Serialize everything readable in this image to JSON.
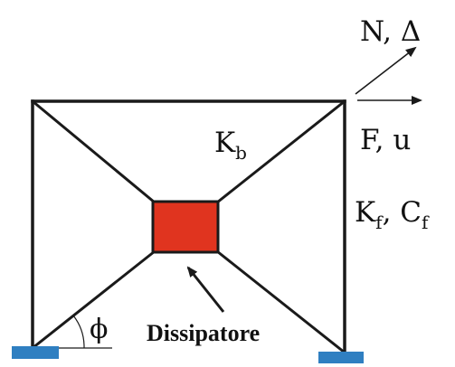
{
  "labels": {
    "axial_force_displacement": "N, Δ",
    "lateral_force_displacement": "F, u",
    "brace_stiffness": "K",
    "brace_stiffness_sub": "b",
    "frame_stiffness": "K",
    "frame_stiffness_sub": "f",
    "frame_damping_sep": ", ",
    "frame_damping": "C",
    "frame_damping_sub": "f",
    "brace_angle": "ϕ",
    "dissipator": "Dissipatore"
  },
  "colors": {
    "frame_lines": "#1a1a1a",
    "dissipator_fill": "#e0341f",
    "dissipator_border": "#1a1a1a",
    "support_plates": "#2f7fc1"
  }
}
